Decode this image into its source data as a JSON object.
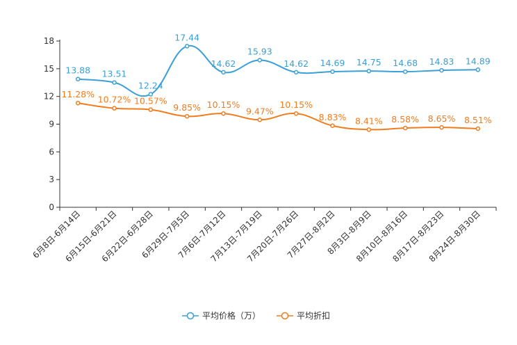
{
  "chart_data": {
    "type": "line",
    "categories": [
      "6月8日-6月14日",
      "6月15日-6月21日",
      "6月22日-6月28日",
      "6月29日-7月5日",
      "7月6日-7月12日",
      "7月13日-7月19日",
      "7月20日-7月26日",
      "7月27日-8月2日",
      "8月3日-8月9日",
      "8月10日-8月16日",
      "8月17日-8月23日",
      "8月24日-8月30日"
    ],
    "ylim": [
      0,
      18
    ],
    "yticks": [
      0,
      3,
      6,
      9,
      12,
      15,
      18
    ],
    "series": [
      {
        "name": "平均价格（万）",
        "color": "#3a9fd6",
        "values": [
          13.88,
          13.51,
          12.24,
          17.44,
          14.62,
          15.93,
          14.62,
          14.69,
          14.75,
          14.68,
          14.83,
          14.89
        ],
        "labels": [
          "13.88",
          "13.51",
          "12.24",
          "17.44",
          "14.62",
          "15.93",
          "14.62",
          "14.69",
          "14.75",
          "14.68",
          "14.83",
          "14.89"
        ]
      },
      {
        "name": "平均折扣",
        "color": "#f07c1e",
        "values": [
          11.28,
          10.72,
          10.57,
          9.85,
          10.15,
          9.47,
          10.15,
          8.83,
          8.41,
          8.58,
          8.65,
          8.51
        ],
        "labels": [
          "11.28%",
          "10.72%",
          "10.57%",
          "9.85%",
          "10.15%",
          "9.47%",
          "10.15%",
          "8.83%",
          "8.41%",
          "8.58%",
          "8.65%",
          "8.51%"
        ]
      }
    ],
    "legend_position": "bottom-center"
  }
}
